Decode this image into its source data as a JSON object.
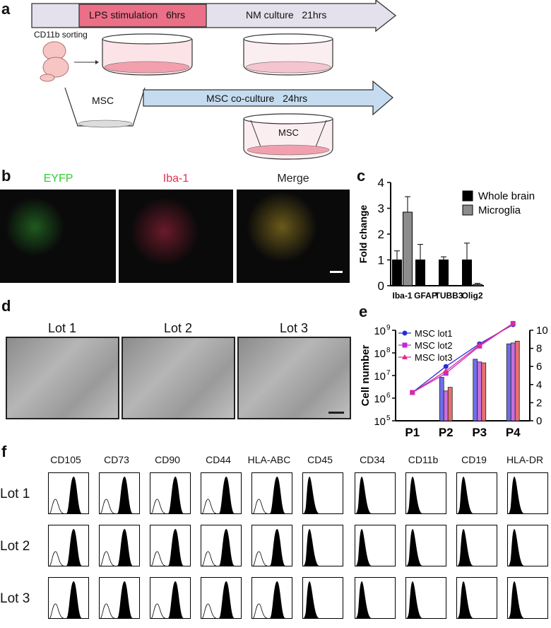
{
  "panels": {
    "a": "a",
    "b": "b",
    "c": "c",
    "d": "d",
    "e": "e",
    "f": "f"
  },
  "panel_a": {
    "lps_label": "LPS stimulation   6hrs",
    "nm_label": "NM culture   21hrs",
    "sorting_label": "CD11b sorting",
    "msc_label": "MSC",
    "coculture_label": "MSC co-culture   24hrs",
    "insert_label": "MSC",
    "colors": {
      "arrow_fill": "#e4e0ec",
      "lps_fill": "#ec6f88",
      "coculture_fill": "#c5dcf0"
    }
  },
  "panel_b": {
    "images": [
      {
        "label": "EYFP",
        "color": "#33cc33"
      },
      {
        "label": "Iba-1",
        "color": "#e0334f"
      },
      {
        "label": "Merge",
        "color": "#222222"
      }
    ]
  },
  "panel_d": {
    "images": [
      {
        "label": "Lot 1"
      },
      {
        "label": "Lot 2"
      },
      {
        "label": "Lot 3"
      }
    ]
  },
  "panel_f": {
    "markers": [
      "CD105",
      "CD73",
      "CD90",
      "CD44",
      "HLA-ABC",
      "CD45",
      "CD34",
      "CD11b",
      "CD19",
      "HLA-DR"
    ],
    "lots": [
      "Lot 1",
      "Lot 2",
      "Lot 3"
    ],
    "positive_markers": [
      "CD105",
      "CD73",
      "CD90",
      "CD44",
      "HLA-ABC"
    ]
  },
  "chart_data": [
    {
      "type": "bar",
      "panel": "c",
      "categories": [
        "Iba-1",
        "GFAP",
        "TUBB3",
        "Olig2"
      ],
      "series": [
        {
          "name": "Whole brain",
          "color": "#000000",
          "values": [
            1,
            1,
            1,
            1
          ],
          "errors": [
            0.35,
            0.6,
            0.12,
            0.65
          ]
        },
        {
          "name": "Microglia",
          "color": "#8c8c8c",
          "values": [
            2.85,
            0.0,
            0.0,
            0.05
          ],
          "errors": [
            0.6,
            0,
            0,
            0.04
          ]
        }
      ],
      "xlabel": "",
      "ylabel": "Fold change",
      "ylim": [
        0,
        4
      ],
      "yticks": [
        "0",
        "1",
        "2",
        "3",
        "4"
      ],
      "legend": "top-right"
    },
    {
      "type": "bar",
      "panel": "e",
      "categories": [
        "P1",
        "P2",
        "P3",
        "P4"
      ],
      "ylabel": "Cell number",
      "left_axis_ticks": [
        "10",
        "10",
        "10",
        "10",
        "10"
      ],
      "left_axis_exponents": [
        "5",
        "6",
        "7",
        "8",
        "9"
      ],
      "right_axis_ticks": [
        "0",
        "2",
        "4",
        "6",
        "8",
        "10"
      ],
      "right_ylim": [
        0,
        10
      ],
      "bar_series": [
        {
          "name": "MSC lot1",
          "color": "#6f6fe8",
          "values": [
            null,
            4.8,
            6.8,
            8.5
          ]
        },
        {
          "name": "MSC lot2",
          "color": "#c86fe0",
          "values": [
            null,
            3.3,
            6.5,
            8.6
          ]
        },
        {
          "name": "MSC lot3",
          "color": "#e86f6f",
          "values": [
            null,
            3.7,
            6.4,
            8.8
          ]
        }
      ],
      "line_series": [
        {
          "name": "MSC lot1",
          "color": "#2b2bd6",
          "marker": "circle",
          "log10_values": [
            6.25,
            7.4,
            8.4,
            9.25
          ]
        },
        {
          "name": "MSC lot2",
          "color": "#c02bd6",
          "marker": "square",
          "log10_values": [
            6.25,
            7.1,
            8.3,
            9.3
          ]
        },
        {
          "name": "MSC lot3",
          "color": "#e02b8a",
          "marker": "triangle",
          "log10_values": [
            6.25,
            7.2,
            8.35,
            9.3
          ]
        }
      ],
      "legend": "top-left"
    }
  ]
}
